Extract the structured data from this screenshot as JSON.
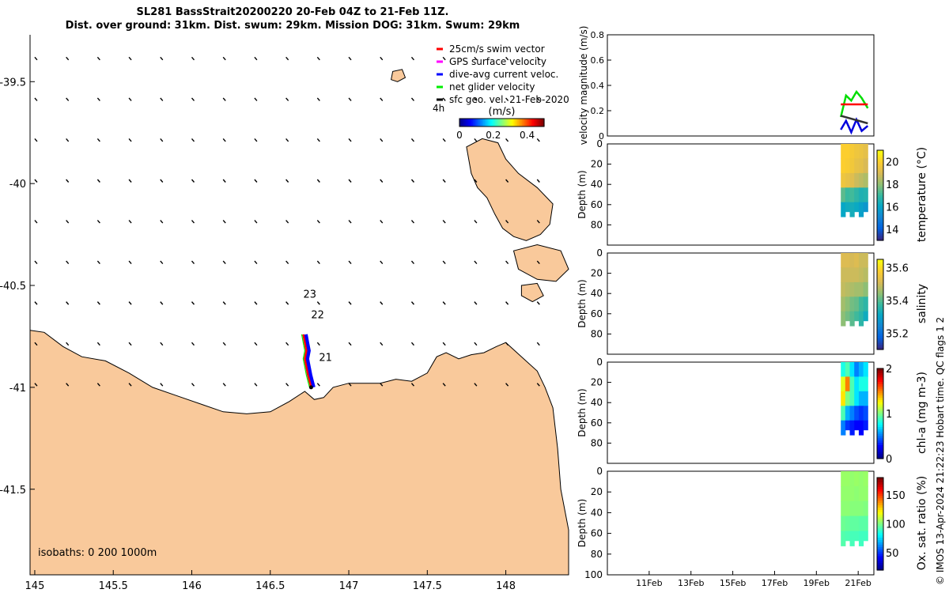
{
  "title": {
    "line1": "SL281 BassStrait20200220 20-Feb 04Z to 21-Feb 11Z.",
    "line2": "Dist. over ground: 31km. Dist. swum: 29km. Mission DOG: 31km. Swum: 29km"
  },
  "credit": "© IMOS 13-Apr-2024 21:22:23 Hobart time. QC flags 1  2",
  "chart_data": [
    {
      "type": "scatter",
      "panel": "map",
      "xlim": [
        144.97,
        148.4
      ],
      "ylim": [
        -41.92,
        -39.27
      ],
      "xticks": [
        145,
        145.5,
        146,
        146.5,
        147,
        147.5,
        148
      ],
      "xtick_labels": [
        "145",
        "145.5",
        "146",
        "146.5",
        "147",
        "147.5",
        "148"
      ],
      "yticks": [
        -39.5,
        -40,
        -40.5,
        -41,
        -41.5
      ],
      "ytick_labels": [
        "-39.5",
        "-40",
        "-40.5",
        "-41",
        "-41.5"
      ],
      "legend": {
        "placement": "top-right",
        "entries": [
          {
            "label": "25cm/s swim vector",
            "color": "#ff0000"
          },
          {
            "label": "GPS surface velocity",
            "color": "#ff00ff"
          },
          {
            "label": "dive-avg current veloc.",
            "color": "#0000ff"
          },
          {
            "label": "net glider velocity",
            "color": "#00ee00"
          },
          {
            "label": "sfc geo. vel. 21-Feb-2020",
            "color": "#000000"
          }
        ]
      },
      "time_label": "4h",
      "colorbar": {
        "label": "(m/s)",
        "ticks": [
          "0",
          "0.2",
          "0.4"
        ],
        "range": [
          0,
          0.5
        ]
      },
      "annotations": [
        {
          "text": "23",
          "x": 146.71,
          "y": -40.56
        },
        {
          "text": "22",
          "x": 146.76,
          "y": -40.66
        },
        {
          "text": "21",
          "x": 146.81,
          "y": -40.87
        }
      ],
      "isobaths_label": "isobaths: 0   200  1000m",
      "track": [
        {
          "x": 146.71,
          "y": -40.74
        },
        {
          "x": 146.72,
          "y": -40.78
        },
        {
          "x": 146.73,
          "y": -40.82
        },
        {
          "x": 146.72,
          "y": -40.86
        },
        {
          "x": 146.73,
          "y": -40.9
        },
        {
          "x": 146.74,
          "y": -40.94
        },
        {
          "x": 146.75,
          "y": -40.97
        },
        {
          "x": 146.76,
          "y": -41.0
        }
      ],
      "land_color": "#f9c99b"
    },
    {
      "type": "line",
      "panel": "velocity",
      "ylabel": "velocity magnitude (m/s)",
      "ylim": [
        0,
        0.8
      ],
      "yticks": [
        0,
        0.2,
        0.4,
        0.6,
        0.8
      ],
      "ytick_labels": [
        "0",
        "0.2",
        "0.4",
        "0.6",
        "0.8"
      ],
      "series": [
        {
          "color": "#00dd00",
          "x": [
            "2020-02-20T04",
            "2020-02-20T10",
            "2020-02-20T16",
            "2020-02-20T22",
            "2020-02-21T04",
            "2020-02-21T11"
          ],
          "values": [
            0.15,
            0.32,
            0.28,
            0.35,
            0.3,
            0.22
          ]
        },
        {
          "color": "#0000dd",
          "x": [
            "2020-02-20T04",
            "2020-02-20T10",
            "2020-02-20T16",
            "2020-02-20T22",
            "2020-02-21T04",
            "2020-02-21T11"
          ],
          "values": [
            0.05,
            0.12,
            0.03,
            0.13,
            0.04,
            0.08
          ]
        },
        {
          "color": "#333333",
          "x": [
            "2020-02-20T04",
            "2020-02-21T11"
          ],
          "values": [
            0.16,
            0.1
          ]
        },
        {
          "color": "#ff0000",
          "x": [
            "2020-02-20T04",
            "2020-02-21T11"
          ],
          "values": [
            0.25,
            0.25
          ]
        }
      ]
    },
    {
      "type": "heatmap",
      "panel": "temperature",
      "ylabel": "Depth (m)",
      "colorbar_label": "temperature (°C)",
      "colorbar_ticks": [
        "14",
        "16",
        "18",
        "20"
      ],
      "clim": [
        13,
        21
      ],
      "ylim": [
        0,
        100
      ],
      "yticks": [
        "0",
        "20",
        "40",
        "60",
        "80"
      ],
      "values": [
        [
          20.0,
          20.0,
          19.8,
          19.6,
          19.5,
          19.3
        ],
        [
          20.0,
          19.9,
          19.7,
          19.4,
          19.3,
          19.0
        ],
        [
          19.6,
          19.4,
          19.2,
          18.8,
          18.6,
          18.4
        ],
        [
          17.4,
          17.0,
          17.1,
          16.8,
          16.5,
          16.6
        ],
        [
          16.0,
          16.2,
          16.3,
          16.1,
          15.8,
          15.5
        ]
      ]
    },
    {
      "type": "heatmap",
      "panel": "salinity",
      "ylabel": "Depth (m)",
      "colorbar_label": "salinity",
      "colorbar_ticks": [
        "35.2",
        "35.4",
        "35.6"
      ],
      "clim": [
        35.1,
        35.65
      ],
      "ylim": [
        0,
        100
      ],
      "yticks": [
        "0",
        "20",
        "40",
        "60",
        "80"
      ],
      "values": [
        [
          35.52,
          35.52,
          35.51,
          35.52,
          35.5,
          35.5
        ],
        [
          35.5,
          35.5,
          35.5,
          35.5,
          35.49,
          35.48
        ],
        [
          35.49,
          35.48,
          35.47,
          35.46,
          35.46,
          35.44
        ],
        [
          35.46,
          35.44,
          35.42,
          35.41,
          35.38,
          35.36
        ],
        [
          35.44,
          35.42,
          35.4,
          35.38,
          35.36,
          35.32
        ]
      ]
    },
    {
      "type": "heatmap",
      "panel": "chlorophyll",
      "ylabel": "Depth (m)",
      "colorbar_label": "chl-a (mg m-3)",
      "colorbar_ticks": [
        "0",
        "1",
        "2"
      ],
      "clim": [
        0,
        2
      ],
      "ylim": [
        0,
        100
      ],
      "yticks": [
        "0",
        "20",
        "40",
        "60",
        "80"
      ],
      "values": [
        [
          0.8,
          0.9,
          0.7,
          0.5,
          0.6,
          0.7
        ],
        [
          1.2,
          1.5,
          0.9,
          0.7,
          0.8,
          0.8
        ],
        [
          1.3,
          1.0,
          0.9,
          0.7,
          0.6,
          0.6
        ],
        [
          0.9,
          0.6,
          0.5,
          0.4,
          0.35,
          0.4
        ],
        [
          0.5,
          0.35,
          0.3,
          0.25,
          0.25,
          0.3
        ]
      ]
    },
    {
      "type": "heatmap",
      "panel": "oxygen",
      "ylabel": "Depth (m)",
      "colorbar_label": "Ox. sat. ratio (%)",
      "colorbar_ticks": [
        "50",
        "100",
        "150"
      ],
      "clim": [
        20,
        180
      ],
      "ylim": [
        0,
        100
      ],
      "yticks": [
        "0",
        "20",
        "40",
        "60",
        "80",
        "100"
      ],
      "xtick_labels": [
        "11Feb",
        "13Feb",
        "15Feb",
        "17Feb",
        "19Feb",
        "21Feb"
      ],
      "values": [
        [
          104,
          104,
          103,
          104,
          103,
          104
        ],
        [
          103,
          103,
          103,
          102,
          103,
          103
        ],
        [
          102,
          102,
          101,
          101,
          101,
          100
        ],
        [
          97,
          96,
          95,
          95,
          94,
          94
        ],
        [
          93,
          92,
          91,
          91,
          90,
          90
        ]
      ]
    }
  ]
}
